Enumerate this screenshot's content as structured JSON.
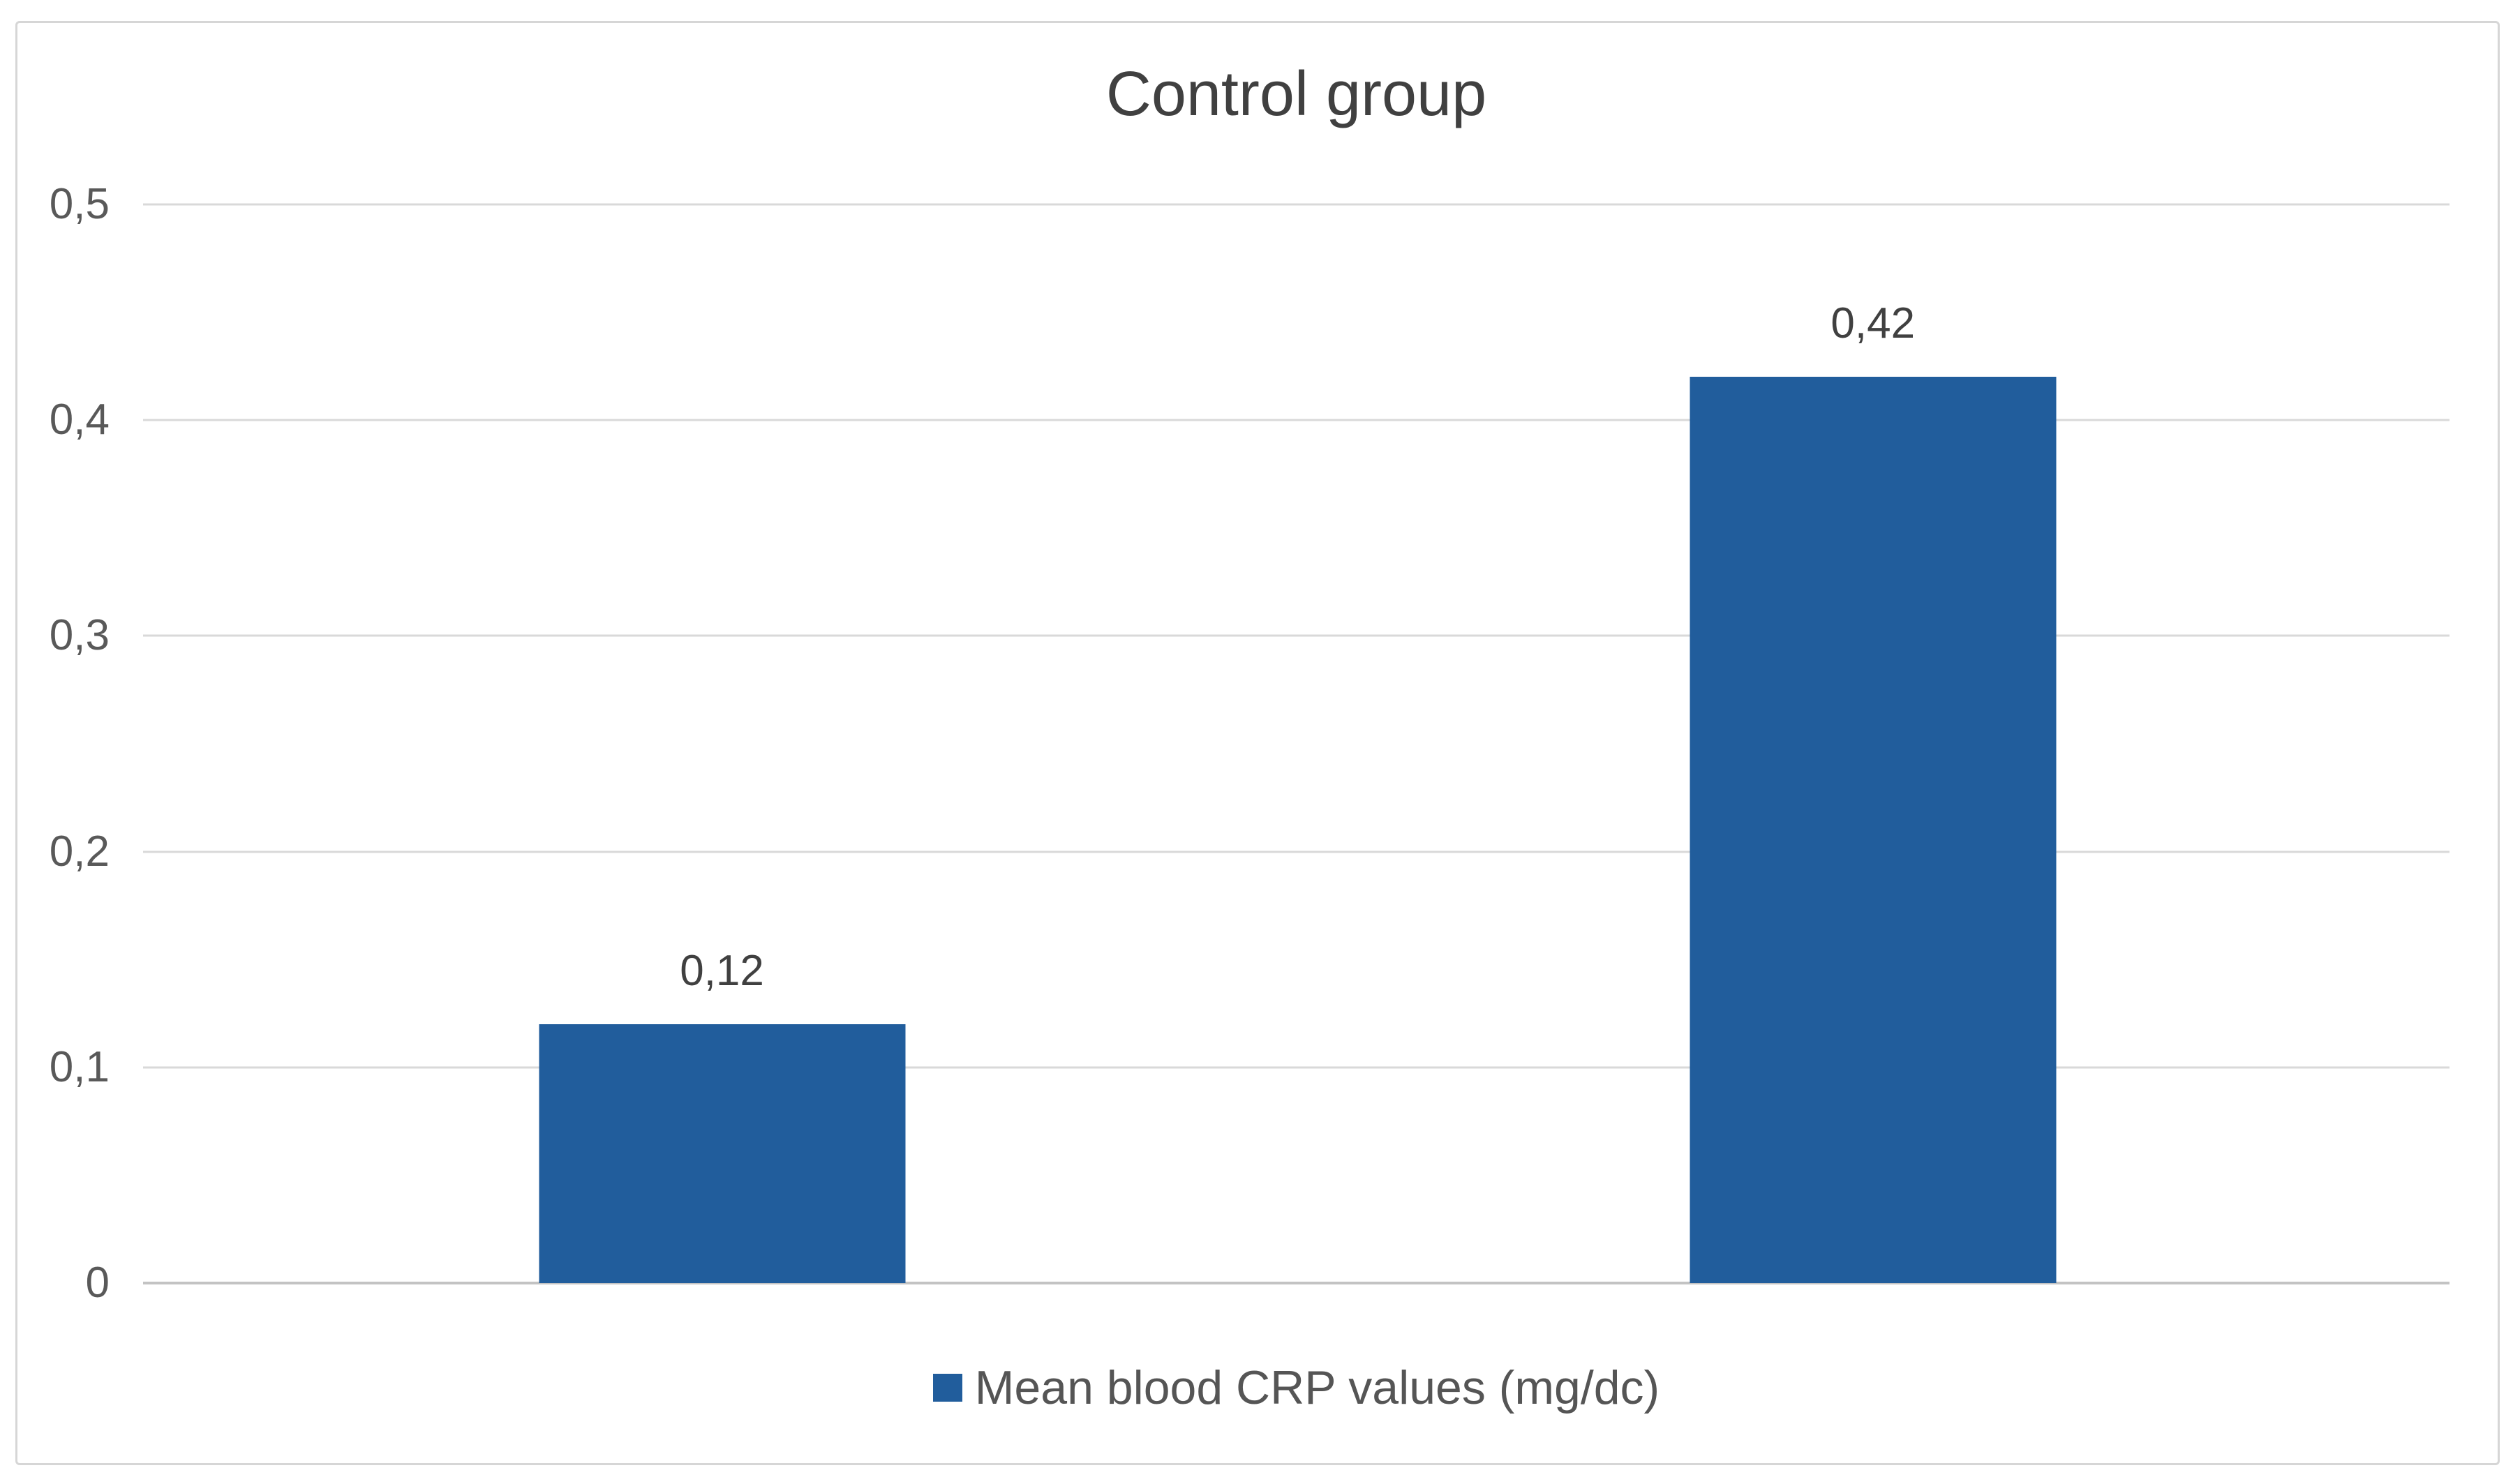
{
  "chart_data": {
    "type": "bar",
    "title": "Control group",
    "categories": [
      "",
      ""
    ],
    "series": [
      {
        "name": "Mean blood CRP values (mg/dc)",
        "values": [
          0.12,
          0.42
        ]
      }
    ],
    "value_labels": [
      "0,12",
      "0,42"
    ],
    "xlabel": "",
    "ylabel": "",
    "ylim": [
      0,
      0.5
    ],
    "yticks": [
      {
        "value": 0.0,
        "label": "0"
      },
      {
        "value": 0.1,
        "label": "0,1"
      },
      {
        "value": 0.2,
        "label": "0,2"
      },
      {
        "value": 0.3,
        "label": "0,3"
      },
      {
        "value": 0.4,
        "label": "0,4"
      },
      {
        "value": 0.5,
        "label": "0,5"
      }
    ],
    "decimal_separator": "comma",
    "grid": "horizontal",
    "legend_position": "bottom",
    "bar_color": "#215D9C",
    "colors": {
      "gridline": "#D9D9D9",
      "axis_line": "#C3C3C3",
      "frame_border": "#D6D6D6",
      "background": "#FFFFFF",
      "title_text": "#404040",
      "tick_text": "#595959",
      "data_label_text": "#404040",
      "legend_text": "#555555"
    }
  },
  "legend": {
    "marker": "square",
    "label": "Mean blood CRP values (mg/dc)"
  }
}
